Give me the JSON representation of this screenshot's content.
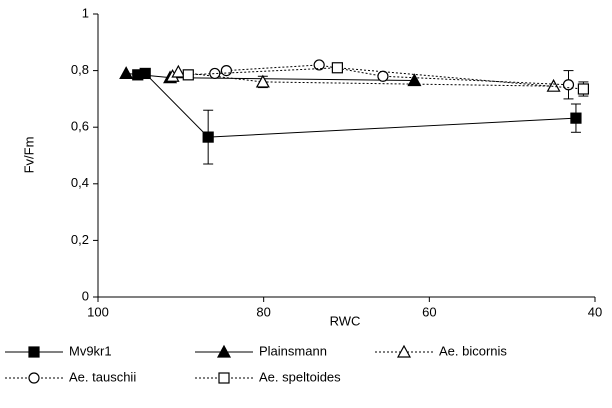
{
  "chart_data": {
    "type": "line",
    "x_label": "RWC",
    "y_label": "Fv/Fm",
    "xlim": [
      100,
      40
    ],
    "xticks": [
      100,
      80,
      60,
      40
    ],
    "ylim": [
      0,
      1
    ],
    "yticks": [
      0,
      {
        "value": 0.2,
        "label": "0,2"
      },
      {
        "value": 0.4,
        "label": "0,4"
      },
      {
        "value": 0.6,
        "label": "0,6"
      },
      {
        "value": 0.8,
        "label": "0,8"
      },
      1
    ],
    "series": [
      {
        "name": "Mv9kr1",
        "color": "#000000",
        "marker": "square",
        "filled": true,
        "dash": "solid",
        "x": [
          95.2,
          94.3,
          86.7,
          42.3
        ],
        "values": [
          0.785,
          0.79,
          0.565,
          0.632
        ],
        "errors": [
          null,
          null,
          0.095,
          0.05
        ]
      },
      {
        "name": "Plainsmann",
        "color": "#000000",
        "marker": "triangle",
        "filled": true,
        "dash": "solid",
        "x": [
          96.6,
          91.3,
          61.8
        ],
        "values": [
          0.79,
          0.775,
          0.765
        ],
        "errors": [
          null,
          null,
          null
        ]
      },
      {
        "name": "Ae. bicornis",
        "color": "#000000",
        "marker": "triangle",
        "filled": false,
        "dash": "dotted",
        "x": [
          91,
          90.3,
          80.1,
          45
        ],
        "values": [
          0.78,
          0.795,
          0.76,
          0.745
        ],
        "errors": [
          null,
          null,
          0.02,
          null
        ]
      },
      {
        "name": "Ae. tauschii",
        "color": "#000000",
        "marker": "circle",
        "filled": false,
        "dash": "dotted",
        "x": [
          85.9,
          84.5,
          73.3,
          65.6,
          43.2
        ],
        "values": [
          0.79,
          0.8,
          0.82,
          0.78,
          0.75
        ],
        "errors": [
          null,
          null,
          null,
          null,
          0.05
        ]
      },
      {
        "name": "Ae. speltoides",
        "color": "#000000",
        "marker": "square",
        "filled": false,
        "dash": "dotted",
        "x": [
          89.1,
          71.1,
          41.4
        ],
        "values": [
          0.785,
          0.81,
          0.735
        ],
        "errors": [
          null,
          null,
          0.025
        ]
      }
    ]
  }
}
